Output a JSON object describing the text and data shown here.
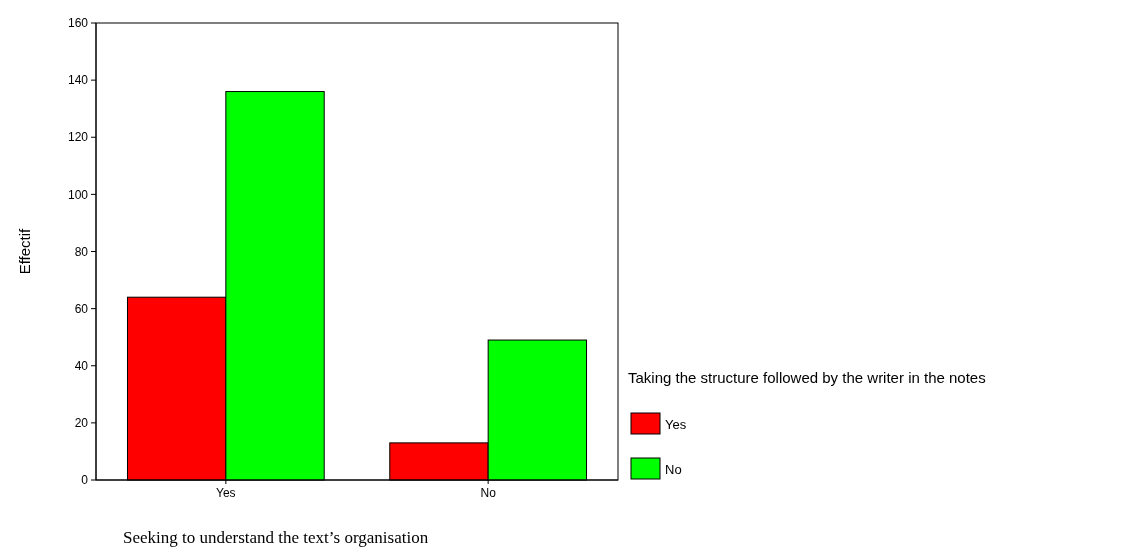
{
  "chart_data": {
    "type": "bar",
    "xlabel": "Seeking to understand the text’s organisation",
    "ylabel": "Effectif",
    "legend_title": "Taking the structure followed by the writer in the notes",
    "categories": [
      "Yes",
      "No"
    ],
    "series": [
      {
        "name": "Yes",
        "color": "#ff0000",
        "values": [
          64,
          13
        ]
      },
      {
        "name": "No",
        "color": "#00ff00",
        "values": [
          136,
          49
        ]
      }
    ],
    "ylim": [
      0,
      160
    ],
    "yticks": [
      0,
      20,
      40,
      60,
      80,
      100,
      120,
      140,
      160
    ],
    "grid": false,
    "legend": "right"
  }
}
